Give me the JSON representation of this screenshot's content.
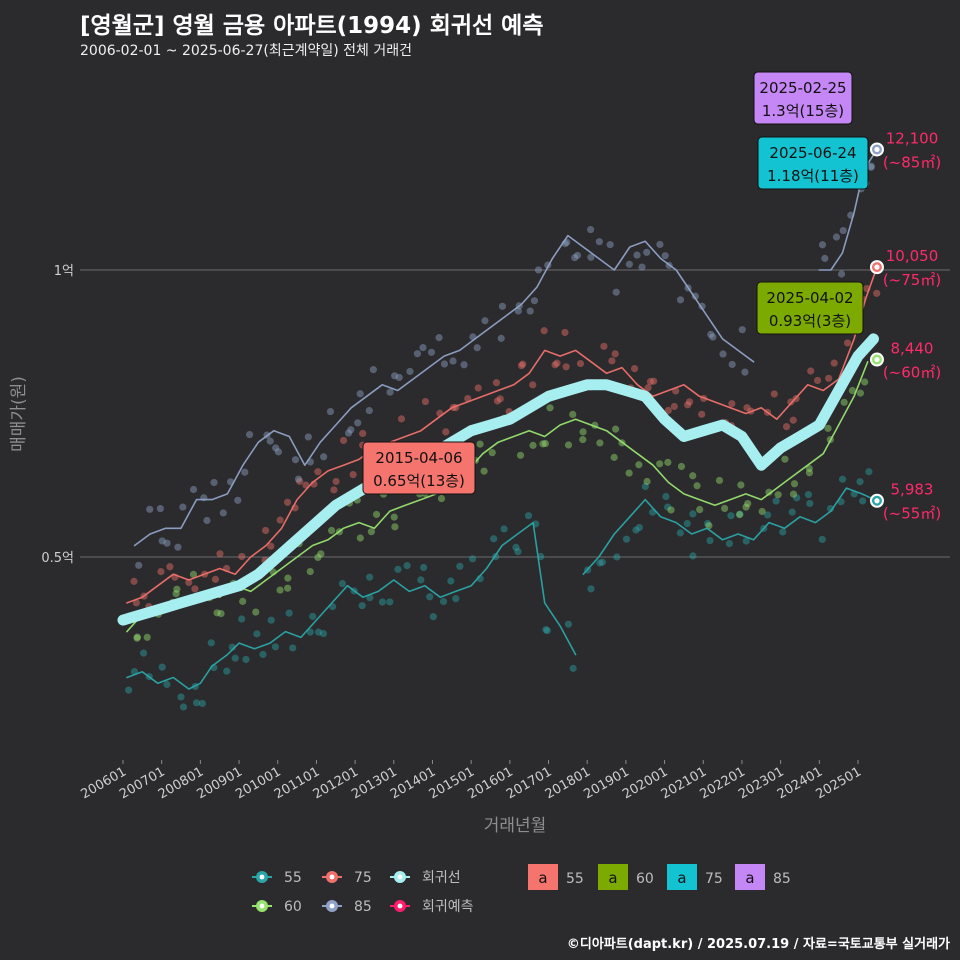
{
  "header": {
    "title": "[영월군] 영월 금용 아파트(1994) 회귀선 예측",
    "subtitle": "2006-02-01 ~ 2025-06-27(최근계약일) 전체 거래건"
  },
  "footer": "©디아파트(dapt.kr) / 2025.07.19 / 자료=국토교통부 실거래가",
  "chart_data": {
    "type": "line",
    "xlabel": "거래년월",
    "ylabel": "매매가(원)",
    "x_tick_labels": [
      "200601",
      "200701",
      "200801",
      "200901",
      "201001",
      "201101",
      "201201",
      "201301",
      "201401",
      "201501",
      "201601",
      "201701",
      "201801",
      "201901",
      "202001",
      "202101",
      "202201",
      "202301",
      "202401",
      "202501"
    ],
    "y_ticks": [
      {
        "value": 0.5,
        "label": "0.5억"
      },
      {
        "value": 1.0,
        "label": "1억"
      }
    ],
    "ylim": [
      0.18,
      1.38
    ],
    "xlim": [
      2005.5,
      2026.2
    ],
    "grid": true,
    "series": [
      {
        "name": "55",
        "color": "#2aa6a8",
        "points": [
          [
            2006.1,
            0.29
          ],
          [
            2006.5,
            0.3
          ],
          [
            2006.9,
            0.28
          ],
          [
            2007.3,
            0.29
          ],
          [
            2007.7,
            0.27
          ],
          [
            2008.0,
            0.28
          ],
          [
            2008.3,
            0.31
          ],
          [
            2008.7,
            0.33
          ],
          [
            2009.0,
            0.35
          ],
          [
            2009.4,
            0.34
          ],
          [
            2009.8,
            0.35
          ],
          [
            2010.2,
            0.37
          ],
          [
            2010.6,
            0.36
          ],
          [
            2011.0,
            0.39
          ],
          [
            2011.4,
            0.42
          ],
          [
            2011.8,
            0.45
          ],
          [
            2012.2,
            0.43
          ],
          [
            2012.6,
            0.44
          ],
          [
            2013.0,
            0.46
          ],
          [
            2013.4,
            0.44
          ],
          [
            2013.8,
            0.45
          ],
          [
            2014.2,
            0.43
          ],
          [
            2014.6,
            0.44
          ],
          [
            2015.0,
            0.45
          ],
          [
            2015.4,
            0.48
          ],
          [
            2015.8,
            0.52
          ],
          [
            2016.2,
            0.54
          ],
          [
            2016.6,
            0.56
          ],
          [
            2016.9,
            0.42
          ],
          [
            2017.3,
            0.38
          ],
          [
            2017.7,
            0.33
          ]
        ]
      },
      {
        "name": "55b",
        "color": "#2aa6a8",
        "points": [
          [
            2017.9,
            0.47
          ],
          [
            2018.3,
            0.5
          ],
          [
            2018.7,
            0.54
          ],
          [
            2019.1,
            0.57
          ],
          [
            2019.5,
            0.6
          ],
          [
            2019.9,
            0.57
          ],
          [
            2020.3,
            0.56
          ],
          [
            2020.7,
            0.54
          ],
          [
            2021.1,
            0.55
          ],
          [
            2021.5,
            0.53
          ],
          [
            2021.9,
            0.54
          ],
          [
            2022.3,
            0.53
          ],
          [
            2022.7,
            0.56
          ],
          [
            2023.1,
            0.55
          ],
          [
            2023.5,
            0.57
          ],
          [
            2023.9,
            0.56
          ],
          [
            2024.3,
            0.58
          ],
          [
            2024.7,
            0.62
          ],
          [
            2025.1,
            0.61
          ],
          [
            2025.49,
            0.598
          ]
        ]
      },
      {
        "name": "60",
        "color": "#97e36f",
        "points": [
          [
            2006.1,
            0.37
          ],
          [
            2006.5,
            0.4
          ],
          [
            2006.9,
            0.41
          ],
          [
            2007.3,
            0.42
          ],
          [
            2007.7,
            0.43
          ],
          [
            2008.1,
            0.44
          ],
          [
            2008.5,
            0.43
          ],
          [
            2008.9,
            0.45
          ],
          [
            2009.3,
            0.44
          ],
          [
            2009.7,
            0.46
          ],
          [
            2010.1,
            0.48
          ],
          [
            2010.5,
            0.5
          ],
          [
            2010.9,
            0.52
          ],
          [
            2011.3,
            0.53
          ],
          [
            2011.7,
            0.55
          ],
          [
            2012.1,
            0.56
          ],
          [
            2012.5,
            0.55
          ],
          [
            2012.9,
            0.58
          ],
          [
            2013.3,
            0.59
          ],
          [
            2013.7,
            0.6
          ],
          [
            2014.1,
            0.61
          ],
          [
            2014.5,
            0.63
          ],
          [
            2014.9,
            0.65
          ],
          [
            2015.3,
            0.68
          ],
          [
            2015.7,
            0.7
          ],
          [
            2016.1,
            0.71
          ],
          [
            2016.5,
            0.72
          ],
          [
            2016.9,
            0.71
          ],
          [
            2017.3,
            0.73
          ],
          [
            2017.7,
            0.74
          ],
          [
            2018.1,
            0.73
          ],
          [
            2018.5,
            0.72
          ],
          [
            2018.9,
            0.7
          ],
          [
            2019.3,
            0.68
          ],
          [
            2019.7,
            0.66
          ],
          [
            2020.1,
            0.63
          ],
          [
            2020.5,
            0.61
          ],
          [
            2020.9,
            0.6
          ],
          [
            2021.3,
            0.59
          ],
          [
            2021.7,
            0.6
          ],
          [
            2022.1,
            0.61
          ],
          [
            2022.5,
            0.6
          ],
          [
            2022.9,
            0.62
          ],
          [
            2023.3,
            0.64
          ],
          [
            2023.7,
            0.66
          ],
          [
            2024.1,
            0.68
          ],
          [
            2024.5,
            0.73
          ],
          [
            2024.9,
            0.78
          ],
          [
            2025.25,
            0.84
          ]
        ]
      },
      {
        "name": "75",
        "color": "#f0716b",
        "points": [
          [
            2006.1,
            0.42
          ],
          [
            2006.5,
            0.43
          ],
          [
            2006.9,
            0.45
          ],
          [
            2007.3,
            0.47
          ],
          [
            2007.7,
            0.46
          ],
          [
            2008.1,
            0.47
          ],
          [
            2008.5,
            0.48
          ],
          [
            2008.9,
            0.47
          ],
          [
            2009.3,
            0.5
          ],
          [
            2009.7,
            0.52
          ],
          [
            2010.1,
            0.55
          ],
          [
            2010.5,
            0.6
          ],
          [
            2010.9,
            0.63
          ],
          [
            2011.3,
            0.65
          ],
          [
            2011.7,
            0.66
          ],
          [
            2012.1,
            0.67
          ],
          [
            2012.5,
            0.69
          ],
          [
            2012.9,
            0.7
          ],
          [
            2013.3,
            0.71
          ],
          [
            2013.7,
            0.72
          ],
          [
            2014.1,
            0.74
          ],
          [
            2014.5,
            0.76
          ],
          [
            2014.9,
            0.77
          ],
          [
            2015.3,
            0.78
          ],
          [
            2015.7,
            0.79
          ],
          [
            2016.1,
            0.8
          ],
          [
            2016.5,
            0.82
          ],
          [
            2016.9,
            0.86
          ],
          [
            2017.3,
            0.85
          ],
          [
            2017.7,
            0.86
          ],
          [
            2018.1,
            0.84
          ],
          [
            2018.5,
            0.82
          ],
          [
            2018.9,
            0.83
          ],
          [
            2019.3,
            0.8
          ],
          [
            2019.7,
            0.78
          ],
          [
            2020.1,
            0.79
          ],
          [
            2020.5,
            0.8
          ],
          [
            2020.9,
            0.78
          ],
          [
            2021.3,
            0.77
          ],
          [
            2021.7,
            0.76
          ],
          [
            2022.1,
            0.75
          ],
          [
            2022.5,
            0.76
          ],
          [
            2022.9,
            0.74
          ],
          [
            2023.3,
            0.77
          ],
          [
            2023.7,
            0.8
          ],
          [
            2024.1,
            0.79
          ],
          [
            2024.5,
            0.81
          ],
          [
            2024.9,
            0.88
          ],
          [
            2025.2,
            0.95
          ],
          [
            2025.49,
            1.005
          ]
        ]
      },
      {
        "name": "85",
        "color": "#8fa3c8",
        "points": [
          [
            2006.3,
            0.52
          ],
          [
            2006.7,
            0.54
          ],
          [
            2007.1,
            0.55
          ],
          [
            2007.5,
            0.55
          ],
          [
            2007.9,
            0.6
          ],
          [
            2008.3,
            0.6
          ],
          [
            2008.7,
            0.61
          ],
          [
            2009.1,
            0.66
          ],
          [
            2009.5,
            0.7
          ],
          [
            2009.9,
            0.72
          ],
          [
            2010.3,
            0.71
          ],
          [
            2010.7,
            0.66
          ],
          [
            2011.1,
            0.7
          ],
          [
            2011.5,
            0.73
          ],
          [
            2011.9,
            0.76
          ],
          [
            2012.3,
            0.78
          ],
          [
            2012.7,
            0.8
          ],
          [
            2013.1,
            0.79
          ],
          [
            2013.5,
            0.81
          ],
          [
            2013.9,
            0.83
          ],
          [
            2014.3,
            0.85
          ],
          [
            2014.7,
            0.86
          ],
          [
            2015.1,
            0.88
          ],
          [
            2015.5,
            0.9
          ],
          [
            2015.9,
            0.92
          ],
          [
            2016.3,
            0.94
          ],
          [
            2016.7,
            0.97
          ],
          [
            2017.1,
            1.02
          ],
          [
            2017.5,
            1.06
          ],
          [
            2017.9,
            1.04
          ],
          [
            2018.3,
            1.02
          ],
          [
            2018.7,
            1.0
          ],
          [
            2019.1,
            1.04
          ],
          [
            2019.5,
            1.05
          ],
          [
            2019.9,
            1.02
          ],
          [
            2020.3,
            1.0
          ],
          [
            2020.7,
            0.96
          ],
          [
            2021.1,
            0.92
          ],
          [
            2021.5,
            0.88
          ],
          [
            2021.9,
            0.86
          ],
          [
            2022.3,
            0.84
          ]
        ]
      },
      {
        "name": "85b",
        "color": "#8fa3c8",
        "points": [
          [
            2024.0,
            1.0
          ],
          [
            2024.3,
            1.0
          ],
          [
            2024.6,
            1.03
          ],
          [
            2024.9,
            1.1
          ],
          [
            2025.1,
            1.16
          ],
          [
            2025.3,
            1.19
          ],
          [
            2025.49,
            1.21
          ]
        ]
      },
      {
        "name": "회귀선",
        "color": "#a7eef0",
        "points": [
          [
            2006.0,
            0.39
          ],
          [
            2006.5,
            0.4
          ],
          [
            2007.0,
            0.41
          ],
          [
            2007.5,
            0.42
          ],
          [
            2008.0,
            0.43
          ],
          [
            2008.5,
            0.44
          ],
          [
            2009.0,
            0.45
          ],
          [
            2009.5,
            0.47
          ],
          [
            2010.0,
            0.5
          ],
          [
            2010.5,
            0.53
          ],
          [
            2011.0,
            0.56
          ],
          [
            2011.5,
            0.59
          ],
          [
            2012.0,
            0.61
          ],
          [
            2012.5,
            0.63
          ],
          [
            2013.0,
            0.64
          ],
          [
            2013.5,
            0.66
          ],
          [
            2014.0,
            0.68
          ],
          [
            2014.5,
            0.7
          ],
          [
            2015.0,
            0.72
          ],
          [
            2015.5,
            0.73
          ],
          [
            2016.0,
            0.74
          ],
          [
            2016.5,
            0.76
          ],
          [
            2017.0,
            0.78
          ],
          [
            2017.5,
            0.79
          ],
          [
            2018.0,
            0.8
          ],
          [
            2018.5,
            0.8
          ],
          [
            2019.0,
            0.79
          ],
          [
            2019.5,
            0.78
          ],
          [
            2020.0,
            0.74
          ],
          [
            2020.5,
            0.71
          ],
          [
            2021.0,
            0.72
          ],
          [
            2021.5,
            0.73
          ],
          [
            2022.0,
            0.71
          ],
          [
            2022.5,
            0.66
          ],
          [
            2023.0,
            0.69
          ],
          [
            2023.5,
            0.71
          ],
          [
            2024.0,
            0.73
          ],
          [
            2024.5,
            0.79
          ],
          [
            2025.0,
            0.85
          ],
          [
            2025.4,
            0.88
          ]
        ]
      }
    ],
    "end_labels": [
      {
        "series": "85",
        "value": 1.21,
        "line1": "12,100",
        "line2": "(~85㎡)"
      },
      {
        "series": "75",
        "value": 1.005,
        "line1": "10,050",
        "line2": "(~75㎡)"
      },
      {
        "series": "60",
        "value": 0.844,
        "line1": "8,440",
        "line2": "(~60㎡)"
      },
      {
        "series": "55",
        "value": 0.598,
        "line1": "5,983",
        "line2": "(~55㎡)"
      }
    ],
    "callouts": [
      {
        "date": "2025-02-25",
        "price": "1.3억(15층)",
        "color": "#c487f5"
      },
      {
        "date": "2025-06-24",
        "price": "1.18억(11층)",
        "color": "#14c3d1"
      },
      {
        "date": "2025-04-02",
        "price": "0.93억(3층)",
        "color": "#7caa00"
      },
      {
        "date": "2015-04-06",
        "price": "0.65억(13층)",
        "color": "#f5756e"
      }
    ],
    "legend": {
      "lines": [
        {
          "label": "55",
          "color": "#2aa6a8"
        },
        {
          "label": "75",
          "color": "#f0716b"
        },
        {
          "label": "회귀선",
          "color": "#a7eef0"
        },
        {
          "label": "60",
          "color": "#97e36f"
        },
        {
          "label": "85",
          "color": "#8fa3c8"
        },
        {
          "label": "회귀예측",
          "color": "#ff1f6b"
        }
      ],
      "boxes": [
        {
          "label": "55",
          "color": "#f5756e",
          "glyph": "a"
        },
        {
          "label": "60",
          "color": "#7caa00",
          "glyph": "a"
        },
        {
          "label": "75",
          "color": "#14c3d1",
          "glyph": "a"
        },
        {
          "label": "85",
          "color": "#c487f5",
          "glyph": "a"
        }
      ]
    }
  }
}
